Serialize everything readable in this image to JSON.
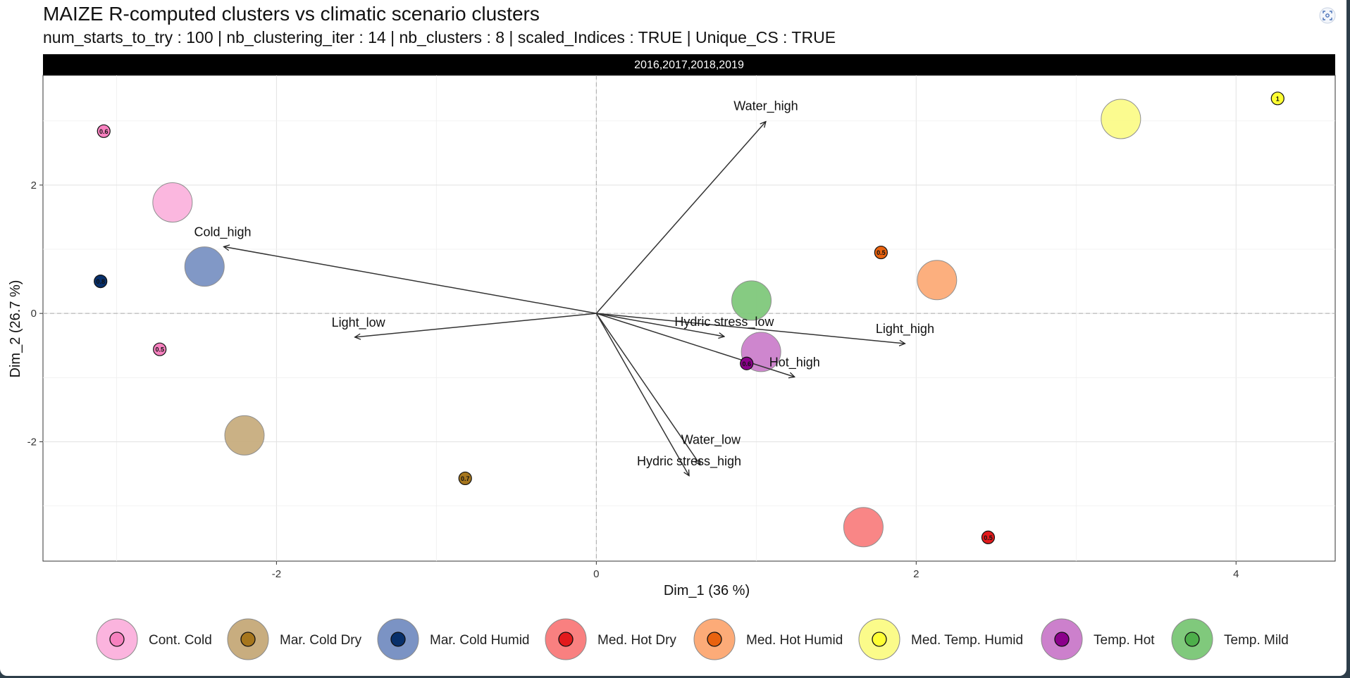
{
  "title": "MAIZE R-computed clusters vs climatic scenario clusters",
  "subtitle": "num_starts_to_try : 100 | nb_clustering_iter : 14 | nb_clusters : 8 | scaled_Indices : TRUE | Unique_CS : TRUE",
  "focus_icon": "focus-scan-icon",
  "chart_data": {
    "type": "scatter",
    "facet_label": "2016,2017,2018,2019",
    "xlabel": "Dim_1 (36 %)",
    "ylabel": "Dim_2 (26.7 %)",
    "xlim": [
      -3.46,
      4.62
    ],
    "ylim": [
      -3.86,
      3.71
    ],
    "x_ticks": [
      -2,
      0,
      2,
      4
    ],
    "y_ticks": [
      -2,
      0,
      2
    ],
    "grid": true,
    "legend_position": "bottom",
    "reference_lines": {
      "x": 0,
      "y": 0,
      "style": "dashed"
    },
    "clusters": [
      {
        "name": "Cont. Cold",
        "fill": "#f781bf",
        "light": "#fbb4de",
        "centroid": [
          -2.65,
          1.73
        ],
        "points": [
          {
            "x": -3.08,
            "y": 2.84,
            "label": "0.6"
          },
          {
            "x": -2.73,
            "y": -0.56,
            "label": "0.5"
          }
        ]
      },
      {
        "name": "Mar. Cold Dry",
        "fill": "#a6761d",
        "light": "#c8ad7f",
        "centroid": [
          -2.2,
          -1.9
        ],
        "points": [
          {
            "x": -0.82,
            "y": -2.57,
            "label": "0.7"
          }
        ]
      },
      {
        "name": "Mar. Cold Humid",
        "fill": "#08306b",
        "light": "#7b93c4",
        "centroid": [
          -2.45,
          0.73
        ],
        "points": [
          {
            "x": -3.1,
            "y": 0.5,
            "label": "0.8"
          }
        ]
      },
      {
        "name": "Med. Hot Dry",
        "fill": "#e31a1c",
        "light": "#f98080",
        "centroid": [
          1.67,
          -3.33
        ],
        "points": [
          {
            "x": 2.45,
            "y": -3.49,
            "label": "0.5"
          }
        ]
      },
      {
        "name": "Med. Hot Humid",
        "fill": "#e8620f",
        "light": "#fcab78",
        "centroid": [
          2.13,
          0.52
        ],
        "points": [
          {
            "x": 1.78,
            "y": 0.95,
            "label": "0.5"
          }
        ]
      },
      {
        "name": "Med. Temp. Humid",
        "fill": "#ffff33",
        "light": "#fbfb8a",
        "centroid": [
          3.28,
          3.03
        ],
        "points": [
          {
            "x": 4.26,
            "y": 3.35,
            "label": "1"
          }
        ]
      },
      {
        "name": "Temp. Hot",
        "fill": "#8b008b",
        "light": "#cc80cc",
        "centroid": [
          1.03,
          -0.6
        ],
        "points": [
          {
            "x": 0.94,
            "y": -0.78,
            "label": "0.6"
          }
        ]
      },
      {
        "name": "Temp. Mild",
        "fill": "#4daf4a",
        "light": "#80c97c",
        "centroid": [
          0.97,
          0.2
        ],
        "points": []
      }
    ],
    "vectors": [
      {
        "name": "Water_high",
        "x": 1.06,
        "y": 2.99
      },
      {
        "name": "Cold_high",
        "x": -2.33,
        "y": 1.04
      },
      {
        "name": "Light_low",
        "x": -1.51,
        "y": -0.37
      },
      {
        "name": "Hydric stress_low",
        "x": 0.8,
        "y": -0.36
      },
      {
        "name": "Light_high",
        "x": 1.93,
        "y": -0.47
      },
      {
        "name": "Hot_high",
        "x": 1.24,
        "y": -0.99
      },
      {
        "name": "Water_low",
        "x": 0.65,
        "y": -2.36
      },
      {
        "name": "Hydric stress_high",
        "x": 0.58,
        "y": -2.53
      }
    ]
  }
}
